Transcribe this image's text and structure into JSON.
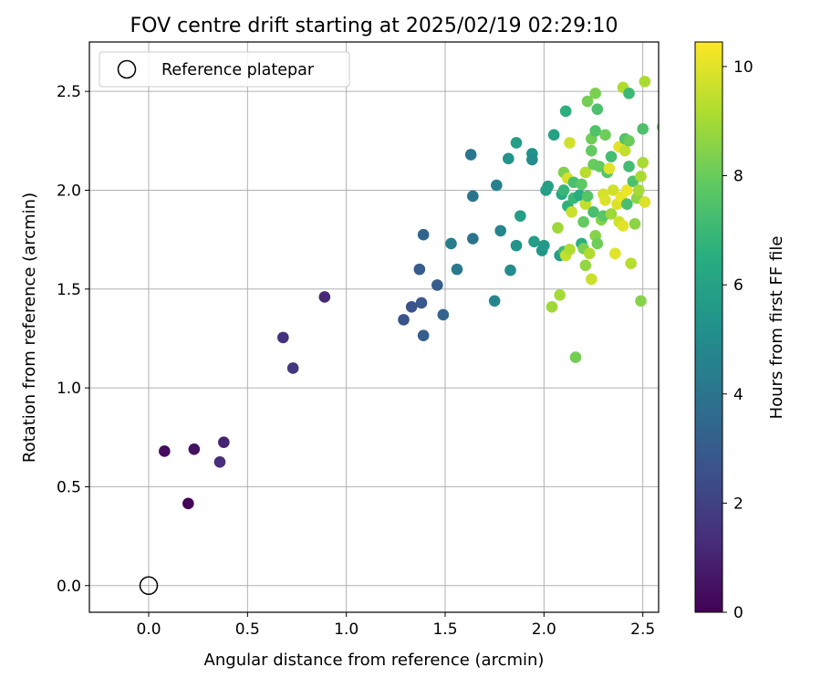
{
  "chart_data": {
    "type": "scatter",
    "title": "FOV centre drift starting at 2025/02/19 02:29:10",
    "xlabel": "Angular distance from reference (arcmin)",
    "ylabel": "Rotation from reference (arcmin)",
    "xlim": [
      -0.3,
      2.58
    ],
    "ylim": [
      -0.135,
      2.75
    ],
    "xticks": [
      0.0,
      0.5,
      1.0,
      1.5,
      2.0,
      2.5
    ],
    "xtick_labels": [
      "0.0",
      "0.5",
      "1.0",
      "1.5",
      "2.0",
      "2.5"
    ],
    "yticks": [
      0.0,
      0.5,
      1.0,
      1.5,
      2.0,
      2.5
    ],
    "ytick_labels": [
      "0.0",
      "0.5",
      "1.0",
      "1.5",
      "2.0",
      "2.5"
    ],
    "grid": true,
    "legend": {
      "position": "top-left",
      "entries": [
        "Reference platepar"
      ]
    },
    "reference_point": {
      "x": 0.0,
      "y": 0.0,
      "marker": "open-circle",
      "edgecolor": "#000000"
    },
    "colormap": "viridis",
    "colorbar": {
      "label": "Hours from first FF file",
      "range": [
        0,
        10.45
      ],
      "ticks": [
        0,
        2,
        4,
        6,
        8,
        10
      ],
      "tick_labels": [
        "0",
        "2",
        "4",
        "6",
        "8",
        "10"
      ]
    },
    "series": [
      {
        "points": [
          {
            "x": 0.2,
            "y": 0.415,
            "c": 0.1
          },
          {
            "x": 0.08,
            "y": 0.68,
            "c": 0.3
          },
          {
            "x": 0.23,
            "y": 0.69,
            "c": 0.5
          },
          {
            "x": 0.38,
            "y": 0.725,
            "c": 1.0
          },
          {
            "x": 0.36,
            "y": 0.625,
            "c": 1.3
          },
          {
            "x": 0.68,
            "y": 1.255,
            "c": 1.5
          },
          {
            "x": 0.73,
            "y": 1.1,
            "c": 1.7
          },
          {
            "x": 0.89,
            "y": 1.46,
            "c": 1.2
          },
          {
            "x": 1.29,
            "y": 1.345,
            "c": 2.7
          },
          {
            "x": 1.33,
            "y": 1.41,
            "c": 2.7
          },
          {
            "x": 1.37,
            "y": 1.6,
            "c": 3.0
          },
          {
            "x": 1.38,
            "y": 1.43,
            "c": 2.9
          },
          {
            "x": 1.39,
            "y": 1.265,
            "c": 3.1
          },
          {
            "x": 1.39,
            "y": 1.775,
            "c": 3.4
          },
          {
            "x": 1.46,
            "y": 1.52,
            "c": 3.1
          },
          {
            "x": 1.49,
            "y": 1.37,
            "c": 3.4
          },
          {
            "x": 1.53,
            "y": 1.73,
            "c": 4.4
          },
          {
            "x": 1.56,
            "y": 1.6,
            "c": 4.2
          },
          {
            "x": 1.63,
            "y": 2.18,
            "c": 4.1
          },
          {
            "x": 1.64,
            "y": 1.97,
            "c": 4.0
          },
          {
            "x": 1.64,
            "y": 1.755,
            "c": 4.0
          },
          {
            "x": 1.75,
            "y": 1.44,
            "c": 4.8
          },
          {
            "x": 1.76,
            "y": 2.025,
            "c": 4.5
          },
          {
            "x": 1.78,
            "y": 1.795,
            "c": 4.7
          },
          {
            "x": 1.82,
            "y": 2.16,
            "c": 5.3
          },
          {
            "x": 1.83,
            "y": 1.595,
            "c": 5.0
          },
          {
            "x": 1.86,
            "y": 2.24,
            "c": 5.8
          },
          {
            "x": 1.86,
            "y": 1.72,
            "c": 5.3
          },
          {
            "x": 1.88,
            "y": 1.87,
            "c": 5.8
          },
          {
            "x": 1.94,
            "y": 2.185,
            "c": 5.3
          },
          {
            "x": 1.94,
            "y": 2.155,
            "c": 5.0
          },
          {
            "x": 1.95,
            "y": 1.74,
            "c": 5.8
          },
          {
            "x": 1.99,
            "y": 1.695,
            "c": 5.4
          },
          {
            "x": 2.0,
            "y": 1.72,
            "c": 5.6
          },
          {
            "x": 2.01,
            "y": 2.0,
            "c": 5.9
          },
          {
            "x": 2.02,
            "y": 2.02,
            "c": 5.9
          },
          {
            "x": 2.04,
            "y": 1.41,
            "c": 8.9
          },
          {
            "x": 2.05,
            "y": 2.28,
            "c": 6.0
          },
          {
            "x": 2.07,
            "y": 1.81,
            "c": 8.9
          },
          {
            "x": 2.08,
            "y": 1.47,
            "c": 9.0
          },
          {
            "x": 2.08,
            "y": 1.67,
            "c": 5.7
          },
          {
            "x": 2.09,
            "y": 1.98,
            "c": 6.3
          },
          {
            "x": 2.1,
            "y": 2.0,
            "c": 6.9
          },
          {
            "x": 2.1,
            "y": 2.09,
            "c": 8.4
          },
          {
            "x": 2.1,
            "y": 1.69,
            "c": 7.0
          },
          {
            "x": 2.11,
            "y": 2.4,
            "c": 6.6
          },
          {
            "x": 2.11,
            "y": 1.67,
            "c": 9.5
          },
          {
            "x": 2.12,
            "y": 1.92,
            "c": 6.7
          },
          {
            "x": 2.12,
            "y": 2.06,
            "c": 9.8
          },
          {
            "x": 2.13,
            "y": 1.7,
            "c": 9.2
          },
          {
            "x": 2.13,
            "y": 2.24,
            "c": 9.7
          },
          {
            "x": 2.14,
            "y": 1.89,
            "c": 9.6
          },
          {
            "x": 2.15,
            "y": 1.96,
            "c": 7.0
          },
          {
            "x": 2.15,
            "y": 2.04,
            "c": 7.3
          },
          {
            "x": 2.16,
            "y": 1.155,
            "c": 8.2
          },
          {
            "x": 2.18,
            "y": 1.975,
            "c": 6.5
          },
          {
            "x": 2.19,
            "y": 2.03,
            "c": 7.8
          },
          {
            "x": 2.19,
            "y": 1.73,
            "c": 6.6
          },
          {
            "x": 2.2,
            "y": 1.84,
            "c": 7.9
          },
          {
            "x": 2.2,
            "y": 1.705,
            "c": 8.3
          },
          {
            "x": 2.21,
            "y": 1.93,
            "c": 9.5
          },
          {
            "x": 2.21,
            "y": 1.62,
            "c": 8.7
          },
          {
            "x": 2.21,
            "y": 2.09,
            "c": 9.3
          },
          {
            "x": 2.22,
            "y": 1.97,
            "c": 7.6
          },
          {
            "x": 2.22,
            "y": 2.45,
            "c": 8.2
          },
          {
            "x": 2.23,
            "y": 1.68,
            "c": 9.2
          },
          {
            "x": 2.24,
            "y": 2.26,
            "c": 8.1
          },
          {
            "x": 2.24,
            "y": 1.55,
            "c": 9.6
          },
          {
            "x": 2.24,
            "y": 2.2,
            "c": 7.9
          },
          {
            "x": 2.25,
            "y": 1.89,
            "c": 7.3
          },
          {
            "x": 2.25,
            "y": 2.13,
            "c": 8.0
          },
          {
            "x": 2.26,
            "y": 2.49,
            "c": 8.3
          },
          {
            "x": 2.26,
            "y": 1.77,
            "c": 8.5
          },
          {
            "x": 2.26,
            "y": 2.3,
            "c": 7.5
          },
          {
            "x": 2.27,
            "y": 1.73,
            "c": 8.1
          },
          {
            "x": 2.27,
            "y": 2.41,
            "c": 7.4
          },
          {
            "x": 2.28,
            "y": 2.12,
            "c": 7.9
          },
          {
            "x": 2.29,
            "y": 1.85,
            "c": 8.5
          },
          {
            "x": 2.3,
            "y": 1.87,
            "c": 7.7
          },
          {
            "x": 2.3,
            "y": 1.98,
            "c": 9.8
          },
          {
            "x": 2.31,
            "y": 2.28,
            "c": 8.1
          },
          {
            "x": 2.31,
            "y": 1.95,
            "c": 9.9
          },
          {
            "x": 2.32,
            "y": 2.09,
            "c": 7.6
          },
          {
            "x": 2.33,
            "y": 2.11,
            "c": 10.0
          },
          {
            "x": 2.34,
            "y": 1.88,
            "c": 8.9
          },
          {
            "x": 2.34,
            "y": 2.17,
            "c": 7.2
          },
          {
            "x": 2.35,
            "y": 2.0,
            "c": 9.7
          },
          {
            "x": 2.36,
            "y": 1.68,
            "c": 10.0
          },
          {
            "x": 2.37,
            "y": 1.93,
            "c": 9.9
          },
          {
            "x": 2.38,
            "y": 1.84,
            "c": 9.7
          },
          {
            "x": 2.38,
            "y": 2.22,
            "c": 10.0
          },
          {
            "x": 2.39,
            "y": 1.965,
            "c": 10.1
          },
          {
            "x": 2.4,
            "y": 2.52,
            "c": 9.2
          },
          {
            "x": 2.4,
            "y": 1.82,
            "c": 10.0
          },
          {
            "x": 2.41,
            "y": 2.26,
            "c": 7.5
          },
          {
            "x": 2.41,
            "y": 2.2,
            "c": 9.5
          },
          {
            "x": 2.42,
            "y": 1.93,
            "c": 7.3
          },
          {
            "x": 2.42,
            "y": 2.0,
            "c": 10.2
          },
          {
            "x": 2.43,
            "y": 2.12,
            "c": 7.2
          },
          {
            "x": 2.43,
            "y": 2.49,
            "c": 7.0
          },
          {
            "x": 2.43,
            "y": 2.25,
            "c": 8.0
          },
          {
            "x": 2.44,
            "y": 1.63,
            "c": 9.3
          },
          {
            "x": 2.45,
            "y": 2.045,
            "c": 7.4
          },
          {
            "x": 2.46,
            "y": 1.83,
            "c": 8.6
          },
          {
            "x": 2.47,
            "y": 1.96,
            "c": 8.6
          },
          {
            "x": 2.48,
            "y": 2.0,
            "c": 9.0
          },
          {
            "x": 2.49,
            "y": 2.07,
            "c": 9.1
          },
          {
            "x": 2.49,
            "y": 1.44,
            "c": 8.5
          },
          {
            "x": 2.5,
            "y": 2.14,
            "c": 9.1
          },
          {
            "x": 2.5,
            "y": 2.31,
            "c": 7.4
          },
          {
            "x": 2.51,
            "y": 2.55,
            "c": 9.1
          },
          {
            "x": 2.51,
            "y": 1.94,
            "c": 9.9
          },
          {
            "x": 2.6,
            "y": 2.32,
            "c": 8.0
          }
        ]
      }
    ]
  }
}
